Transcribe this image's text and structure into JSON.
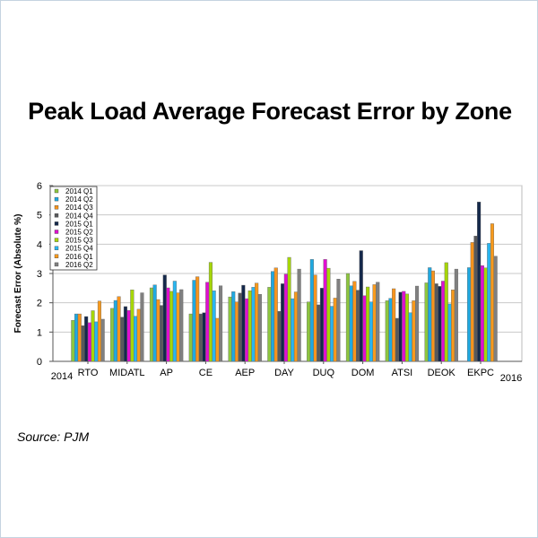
{
  "chart_data": {
    "type": "bar",
    "title": "Peak Load Average Forecast Error by Zone",
    "ylabel": "Forecast Error  (Absolute %)",
    "xlabel": "",
    "ylim": [
      0,
      6
    ],
    "yticks": [
      "0",
      "1",
      "2",
      "3",
      "4",
      "5",
      "6"
    ],
    "grid": true,
    "legend_position": "top-left",
    "axis_end_labels": {
      "left": "2014",
      "right": "2016"
    },
    "categories": [
      "RTO",
      "MIDATL",
      "AP",
      "CE",
      "AEP",
      "DAY",
      "DUQ",
      "DOM",
      "ATSI",
      "DEOK",
      "EKPC"
    ],
    "series": [
      {
        "name": "2014 Q1",
        "color": "#8dc63f",
        "values": [
          1.4,
          1.81,
          2.51,
          1.62,
          2.2,
          2.53,
          2.03,
          3.0,
          2.07,
          2.68,
          null
        ]
      },
      {
        "name": "2014 Q2",
        "color": "#1fa9e1",
        "values": [
          1.62,
          2.08,
          2.61,
          2.77,
          2.38,
          3.07,
          3.48,
          2.58,
          2.15,
          3.2,
          3.2
        ]
      },
      {
        "name": "2014 Q3",
        "color": "#f7941d",
        "values": [
          1.62,
          2.21,
          2.11,
          2.89,
          2.03,
          3.19,
          2.95,
          2.73,
          2.48,
          3.09,
          4.06
        ]
      },
      {
        "name": "2014 Q4",
        "color": "#58595b",
        "values": [
          1.22,
          1.51,
          1.91,
          1.62,
          2.33,
          1.71,
          1.93,
          2.43,
          1.47,
          2.65,
          4.28
        ]
      },
      {
        "name": "2015 Q1",
        "color": "#14284b",
        "values": [
          1.53,
          1.87,
          2.95,
          1.66,
          2.6,
          2.65,
          2.5,
          3.78,
          2.36,
          2.56,
          5.44
        ]
      },
      {
        "name": "2015 Q2",
        "color": "#e00fd0",
        "values": [
          1.32,
          1.74,
          2.51,
          2.7,
          2.14,
          2.98,
          3.48,
          2.24,
          2.39,
          2.74,
          3.27
        ]
      },
      {
        "name": "2015 Q3",
        "color": "#a6d608",
        "values": [
          1.73,
          2.44,
          2.39,
          3.38,
          2.41,
          3.55,
          3.18,
          2.54,
          2.3,
          3.37,
          3.19
        ]
      },
      {
        "name": "2015 Q4",
        "color": "#29b6f0",
        "values": [
          1.35,
          1.54,
          2.74,
          2.41,
          2.53,
          2.14,
          1.88,
          2.03,
          1.66,
          1.96,
          4.03
        ]
      },
      {
        "name": "2016 Q1",
        "color": "#f89a1c",
        "values": [
          2.06,
          1.78,
          2.34,
          1.47,
          2.67,
          2.37,
          2.16,
          2.62,
          2.07,
          2.44,
          4.7
        ]
      },
      {
        "name": "2016 Q2",
        "color": "#808080",
        "values": [
          1.44,
          2.34,
          2.45,
          2.58,
          2.29,
          3.15,
          2.81,
          2.7,
          2.57,
          3.15,
          3.59
        ]
      }
    ]
  },
  "source": "Source: PJM"
}
